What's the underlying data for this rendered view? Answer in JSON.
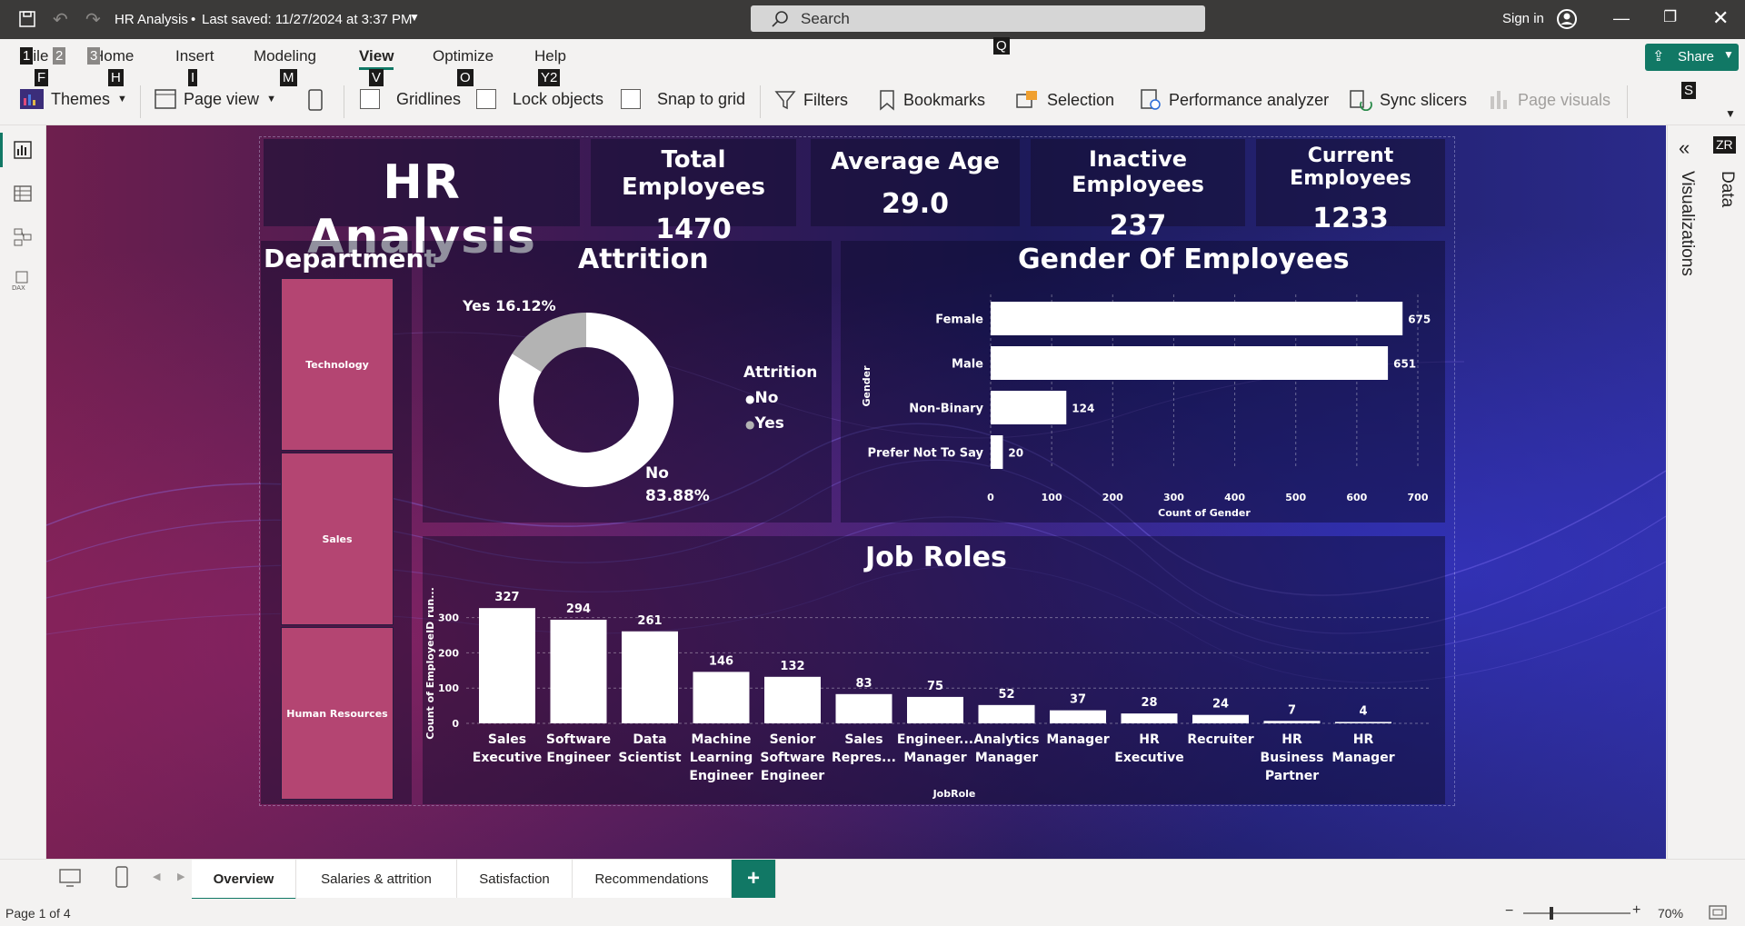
{
  "titlebar": {
    "file_name": "HR Analysis",
    "saved_status": "Last saved: 11/27/2024 at 3:37 PM",
    "search_placeholder": "Search",
    "sign_in": "Sign in"
  },
  "ribbon": {
    "tabs": [
      "File",
      "Home",
      "Insert",
      "Modeling",
      "View",
      "Optimize",
      "Help"
    ],
    "active_tab": "View",
    "keytips": {
      "file": "1",
      "file2": "2",
      "file3": "3",
      "f": "F",
      "h": "H",
      "i": "I",
      "m": "M",
      "v": "V",
      "o": "O",
      "y2": "Y2",
      "q": "Q",
      "s": "S",
      "zr": "ZR"
    },
    "buttons": {
      "themes": "Themes",
      "page_view": "Page view",
      "gridlines": "Gridlines",
      "lock_objects": "Lock objects",
      "snap_to_grid": "Snap to grid",
      "filters": "Filters",
      "bookmarks": "Bookmarks",
      "selection": "Selection",
      "performance_analyzer": "Performance analyzer",
      "sync_slicers": "Sync slicers",
      "page_visuals": "Page visuals"
    },
    "share": "Share"
  },
  "panes": {
    "visualizations": "Visualizations",
    "data": "Data"
  },
  "report": {
    "title": "HR Analysis",
    "kpis": [
      {
        "label": "Total Employees",
        "value": "1470"
      },
      {
        "label": "Average Age",
        "value": "29.0"
      },
      {
        "label": "Inactive Employees",
        "value": "237"
      },
      {
        "label": "Current Employees",
        "value": "1233"
      }
    ],
    "department": {
      "title": "Department",
      "items": [
        "Technology",
        "Sales",
        "Human Resources"
      ]
    },
    "attrition": {
      "title": "Attrition",
      "legend_title": "Attrition",
      "legend": [
        "No",
        "Yes"
      ],
      "yes_label": "Yes 16.12%",
      "no_label_1": "No",
      "no_label_2": "83.88%",
      "colors": {
        "No": "#ffffff",
        "Yes": "#b3b3b3"
      }
    },
    "gender": {
      "title": "Gender Of Employees",
      "ylabel": "Gender",
      "xlabel": "Count of Gender"
    },
    "job_roles": {
      "title": "Job Roles",
      "ylabel": "Count of EmployeeID run...",
      "xlabel": "JobRole"
    }
  },
  "chart_data": [
    {
      "type": "pie",
      "title": "Attrition",
      "categories": [
        "No",
        "Yes"
      ],
      "values": [
        83.88,
        16.12
      ]
    },
    {
      "type": "bar",
      "title": "Gender Of Employees",
      "orientation": "horizontal",
      "categories": [
        "Female",
        "Male",
        "Non-Binary",
        "Prefer Not To Say"
      ],
      "values": [
        675,
        651,
        124,
        20
      ],
      "xlabel": "Count of Gender",
      "ylabel": "Gender",
      "xlim": [
        0,
        700
      ],
      "ticks": [
        "0",
        "100",
        "200",
        "300",
        "400",
        "500",
        "600",
        "700"
      ]
    },
    {
      "type": "bar",
      "title": "Job Roles",
      "categories": [
        "Sales Executive",
        "Software Engineer",
        "Data Scientist",
        "Machine Learning Engineer",
        "Senior Software Engineer",
        "Sales Repres...",
        "Engineer... Manager",
        "Analytics Manager",
        "Manager",
        "HR Executive",
        "Recruiter",
        "HR Business Partner",
        "HR Manager"
      ],
      "values": [
        327,
        294,
        261,
        146,
        132,
        83,
        75,
        52,
        37,
        28,
        24,
        7,
        4
      ],
      "xlabel": "JobRole",
      "ylabel": "Count of EmployeeID run...",
      "ylim": [
        0,
        330
      ],
      "ticks": [
        "0",
        "100",
        "200",
        "300"
      ]
    }
  ],
  "pagetabs": {
    "tabs": [
      "Overview",
      "Salaries & attrition",
      "Satisfaction",
      "Recommendations"
    ],
    "active": "Overview",
    "add": "+"
  },
  "statusbar": {
    "page": "Page 1 of 4",
    "zoom": "70%"
  }
}
